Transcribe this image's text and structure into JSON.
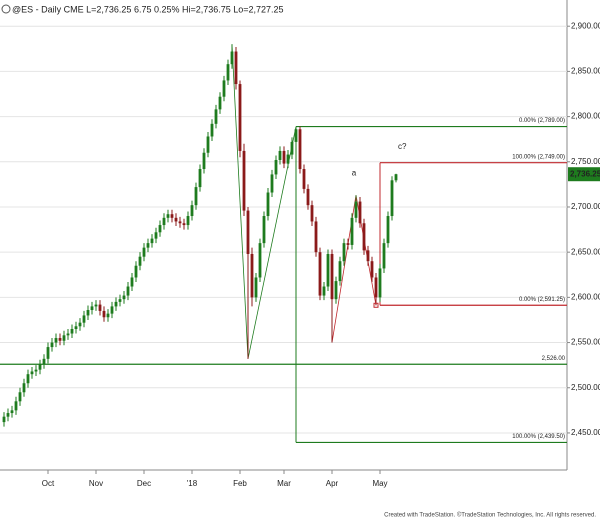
{
  "chart_data": {
    "type": "candlestick",
    "title": "@ES - Daily CME  L=2,736.25 6.75 0.25% Hi=2,736.75 Lo=2,727.25",
    "footer": "Created with TradeStation. ©TradeStation Technologies, Inc. All rights reserved.",
    "up_color": "#1e7b1e",
    "down_color": "#8b1a1a",
    "grid": true,
    "ylim": [
      2409,
      2929
    ],
    "yticks": [
      {
        "value": 2450,
        "label": "2,450.00"
      },
      {
        "value": 2500,
        "label": "2,500.00"
      },
      {
        "value": 2550,
        "label": "2,550.00"
      },
      {
        "value": 2600,
        "label": "2,600.00"
      },
      {
        "value": 2650,
        "label": "2,650.00"
      },
      {
        "value": 2700,
        "label": "2,700.00"
      },
      {
        "value": 2750,
        "label": "2,750.00"
      },
      {
        "value": 2800,
        "label": "2,800.00"
      },
      {
        "value": 2850,
        "label": "2,850.00"
      },
      {
        "value": 2900,
        "label": "2,900.00"
      }
    ],
    "categories": [
      null,
      null,
      null,
      null,
      null,
      null,
      null,
      null,
      null,
      null,
      null,
      "Oct",
      null,
      null,
      null,
      null,
      null,
      null,
      null,
      null,
      null,
      null,
      null,
      "Nov",
      null,
      null,
      null,
      null,
      null,
      null,
      null,
      null,
      null,
      null,
      null,
      "Dec",
      null,
      null,
      null,
      null,
      null,
      null,
      null,
      null,
      null,
      null,
      null,
      "'18",
      null,
      null,
      null,
      null,
      null,
      null,
      null,
      null,
      null,
      null,
      null,
      "Feb",
      null,
      null,
      null,
      null,
      null,
      null,
      null,
      null,
      null,
      null,
      "Mar",
      null,
      null,
      null,
      null,
      null,
      null,
      null,
      null,
      null,
      null,
      null,
      "Apr",
      null,
      null,
      null,
      null,
      null,
      null,
      null,
      null,
      null,
      null,
      null,
      "May",
      null,
      null,
      null,
      null
    ],
    "open": [
      2462,
      2468,
      2472,
      2475,
      2485,
      2495,
      2505,
      2515,
      2518,
      2520,
      2526,
      2532,
      2545,
      2550,
      2555,
      2552,
      2558,
      2560,
      2565,
      2568,
      2572,
      2580,
      2586,
      2590,
      2592,
      2585,
      2578,
      2582,
      2590,
      2595,
      2598,
      2602,
      2612,
      2622,
      2635,
      2645,
      2655,
      2660,
      2665,
      2672,
      2680,
      2688,
      2692,
      2688,
      2684,
      2682,
      2680,
      2690,
      2702,
      2722,
      2742,
      2760,
      2778,
      2792,
      2808,
      2822,
      2840,
      2858,
      2872,
      2836,
      2762,
      2696,
      2648,
      2600,
      2622,
      2660,
      2690,
      2716,
      2736,
      2752,
      2762,
      2748,
      2758,
      2772,
      2786,
      2742,
      2720,
      2702,
      2684,
      2650,
      2602,
      2612,
      2648,
      2598,
      2618,
      2640,
      2660,
      2658,
      2688,
      2706,
      2682,
      2652,
      2640,
      2622,
      2600,
      2632,
      2660,
      2690,
      2729.5
    ],
    "high": [
      2473,
      2477,
      2480,
      2490,
      2500,
      2510,
      2520,
      2523,
      2525,
      2531,
      2537,
      2550,
      2555,
      2560,
      2560,
      2563,
      2565,
      2570,
      2573,
      2577,
      2585,
      2591,
      2595,
      2597,
      2597,
      2590,
      2587,
      2595,
      2600,
      2603,
      2607,
      2617,
      2627,
      2640,
      2650,
      2660,
      2665,
      2670,
      2677,
      2685,
      2693,
      2697,
      2697,
      2693,
      2689,
      2687,
      2695,
      2707,
      2727,
      2747,
      2765,
      2783,
      2797,
      2813,
      2827,
      2845,
      2863,
      2880,
      2877,
      2840,
      2770,
      2700,
      2655,
      2627,
      2665,
      2695,
      2721,
      2741,
      2757,
      2767,
      2767,
      2763,
      2777,
      2789,
      2789,
      2747,
      2725,
      2707,
      2689,
      2655,
      2617,
      2653,
      2653,
      2623,
      2645,
      2665,
      2665,
      2693,
      2713,
      2711,
      2687,
      2657,
      2645,
      2627,
      2637,
      2665,
      2695,
      2734,
      2736.75
    ],
    "low": [
      2457,
      2463,
      2467,
      2470,
      2480,
      2490,
      2500,
      2510,
      2513,
      2515,
      2521,
      2527,
      2540,
      2545,
      2547,
      2547,
      2553,
      2555,
      2560,
      2563,
      2567,
      2575,
      2581,
      2585,
      2580,
      2573,
      2573,
      2577,
      2585,
      2590,
      2593,
      2597,
      2607,
      2617,
      2630,
      2640,
      2650,
      2655,
      2660,
      2667,
      2675,
      2683,
      2683,
      2679,
      2677,
      2675,
      2675,
      2685,
      2697,
      2717,
      2737,
      2755,
      2773,
      2787,
      2803,
      2817,
      2835,
      2853,
      2830,
      2755,
      2690,
      2532,
      2590,
      2595,
      2617,
      2655,
      2685,
      2711,
      2731,
      2747,
      2743,
      2743,
      2753,
      2767,
      2737,
      2715,
      2697,
      2679,
      2645,
      2597,
      2597,
      2607,
      2550,
      2593,
      2613,
      2635,
      2653,
      2653,
      2683,
      2677,
      2647,
      2635,
      2617,
      2591.25,
      2595,
      2627,
      2655,
      2685,
      2727.25
    ],
    "close": [
      2468,
      2472,
      2475,
      2485,
      2495,
      2505,
      2515,
      2518,
      2520,
      2526,
      2532,
      2545,
      2550,
      2555,
      2552,
      2558,
      2560,
      2565,
      2568,
      2572,
      2580,
      2586,
      2590,
      2592,
      2585,
      2578,
      2582,
      2590,
      2595,
      2598,
      2602,
      2612,
      2622,
      2635,
      2645,
      2655,
      2660,
      2665,
      2672,
      2680,
      2688,
      2692,
      2688,
      2684,
      2682,
      2680,
      2690,
      2702,
      2722,
      2742,
      2760,
      2778,
      2792,
      2808,
      2822,
      2840,
      2858,
      2872,
      2836,
      2762,
      2696,
      2648,
      2600,
      2622,
      2660,
      2690,
      2716,
      2736,
      2752,
      2762,
      2748,
      2758,
      2772,
      2786,
      2742,
      2720,
      2702,
      2684,
      2650,
      2602,
      2612,
      2648,
      2598,
      2618,
      2640,
      2660,
      2658,
      2688,
      2706,
      2682,
      2652,
      2640,
      2622,
      2600,
      2632,
      2660,
      2690,
      2729.5,
      2736.25
    ],
    "last_price": {
      "value": 2736.25,
      "label": "2,736.25"
    },
    "levels": [
      {
        "value": 2789,
        "label": "0.00% (2,789.00)",
        "color": "#1e7b1e"
      },
      {
        "value": 2749,
        "label": "100.00% (2,749.00)",
        "color": "#c0282d"
      },
      {
        "value": 2591.25,
        "label": "0.00% (2,591.25)",
        "color": "#c0282d"
      },
      {
        "value": 2526,
        "label": "2,526.00",
        "color": "#1e7b1e"
      },
      {
        "value": 2439.5,
        "label": "100.00% (2,439.50)",
        "color": "#1e7b1e"
      }
    ],
    "annotations": [
      {
        "text": "a",
        "color": "#c0282d"
      },
      {
        "text": "c?",
        "color": "#c0282d"
      }
    ]
  }
}
